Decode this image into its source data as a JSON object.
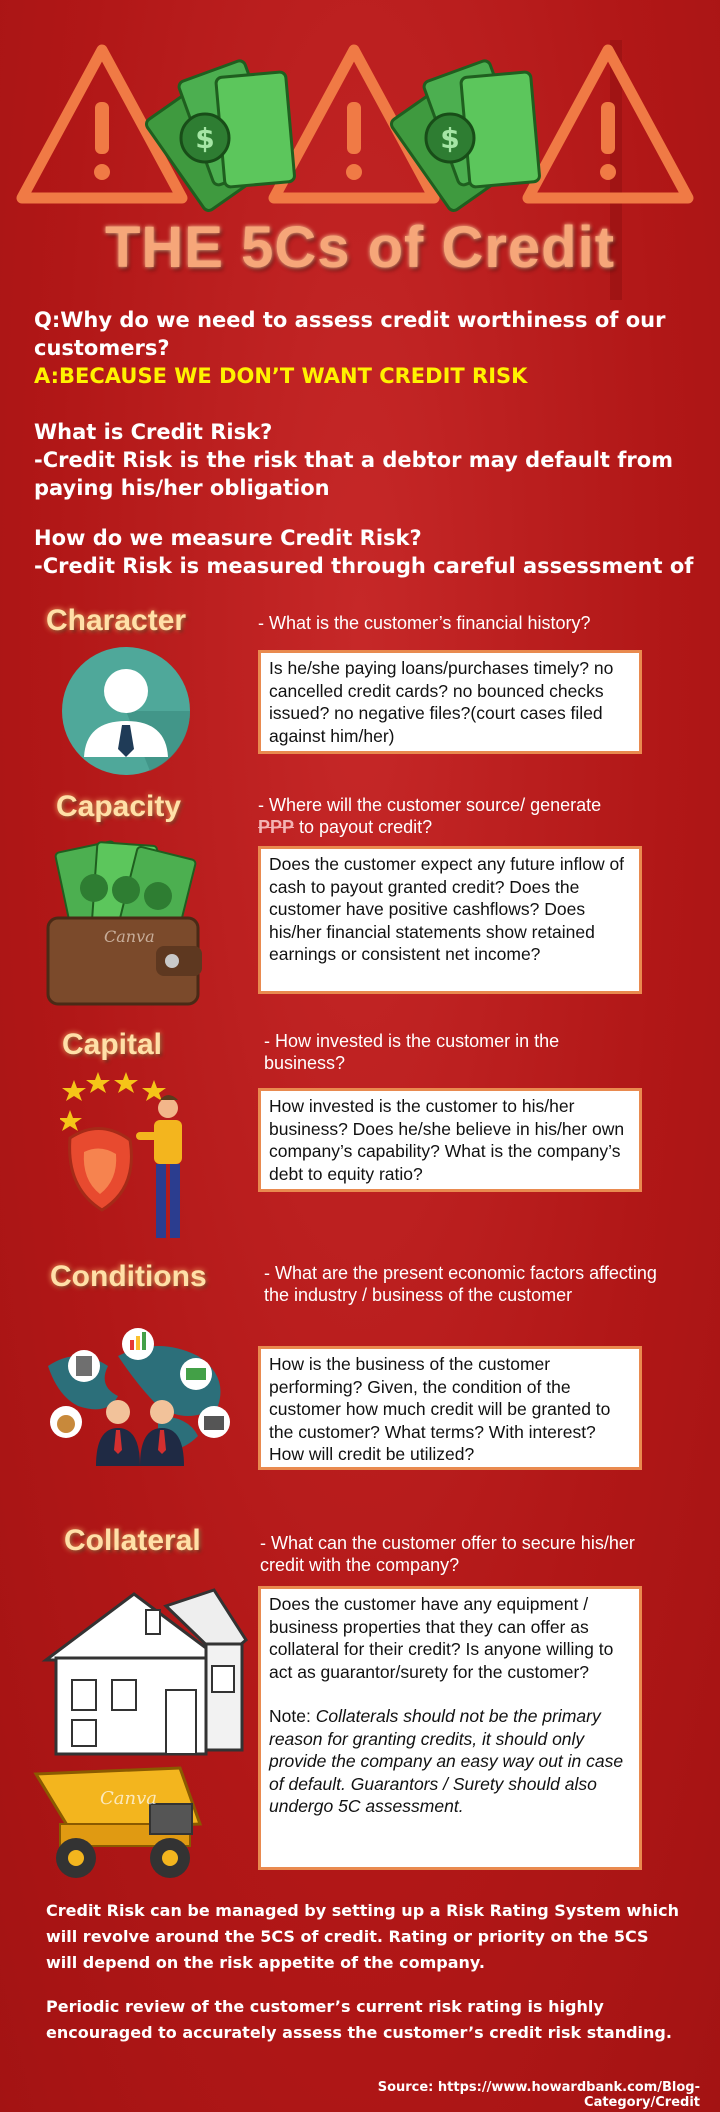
{
  "header": {
    "title": "THE 5Cs of Credit",
    "icons": [
      "warning-triangle-icon",
      "money-bills-icon",
      "warning-triangle-icon",
      "money-bills-icon",
      "warning-triangle-icon"
    ]
  },
  "intro": {
    "q_prefix": "Q:",
    "q_text": "Why do we need to assess credit worthiness of our customers?",
    "a_prefix": "A:",
    "a_text": "BECAUSE WE DON’T WANT CREDIT RISK",
    "what_heading": "What is Credit Risk?",
    "what_text": "-Credit Risk is the risk that a debtor may default from paying his/her obligation",
    "how_heading": "How do we measure Credit Risk?",
    "how_text": "-Credit Risk is measured through careful assessment of"
  },
  "sections": {
    "character": {
      "title": "Character",
      "question": "- What is the customer’s financial history?",
      "detail": "Is he/she paying loans/purchases timely? no cancelled credit cards? no bounced checks issued? no negative files?(court cases filed against him/her)"
    },
    "capacity": {
      "title": "Capacity",
      "question_a": "- Where will the customer source/ generate",
      "question_strike": "PPP",
      "question_b": " to payout credit?",
      "detail": "Does the customer expect any future inflow of cash to payout granted credit? Does the customer have positive cashflows? Does his/her financial statements show retained earnings or consistent net income?",
      "watermark": "Canva"
    },
    "capital": {
      "title": "Capital",
      "question": "- How invested is the customer in the business?",
      "detail": "How invested is the customer to his/her business? Does he/she believe in his/her own company’s capability? What is the company’s debt to equity ratio?"
    },
    "conditions": {
      "title": "Conditions",
      "question": "- What are the present economic factors affecting the industry / business of the customer",
      "detail": "How is the business of the customer performing? Given, the condition of the customer how much credit will be granted to the customer? What terms? With interest? How will credit be utilized?"
    },
    "collateral": {
      "title": "Collateral",
      "question": "- What can the customer offer to secure his/her credit with the company?",
      "detail": "Does the customer have any equipment / business properties that they can offer as collateral for their credit? Is anyone willing to act as guarantor/surety for the customer?",
      "note_label": "Note: ",
      "note_text": "Collaterals should not be the primary reason for granting credits, it should only provide the company an easy way out in case of default. Guarantors / Surety should also undergo 5C assessment.",
      "watermark": "Canva"
    }
  },
  "footer": {
    "para1": "Credit Risk can be managed by setting up a Risk Rating System which will revolve around the 5CS of credit. Rating or priority on the 5CS will depend on the risk appetite of the company.",
    "para2": "Periodic review of the customer’s current risk rating is highly encouraged to accurately assess the customer’s credit risk standing.",
    "source": "Source: https://www.howardbank.com/Blog-Category/Credit"
  },
  "colors": {
    "background": "#b71c1c",
    "title": "#f6a679",
    "answer": "#fff200",
    "box_border": "#e98a4f",
    "triangle": "#f07a45",
    "money": "#4caf50"
  }
}
